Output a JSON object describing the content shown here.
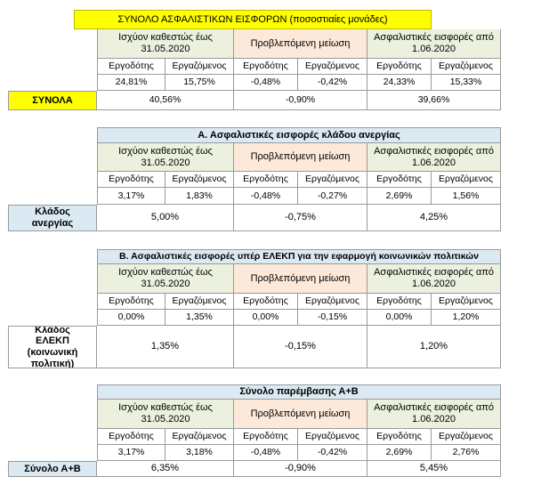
{
  "headers": {
    "current": "Ισχύον καθεστώς έως 31.05.2020",
    "reduction": "Προβλεπόμενη μείωση",
    "new": "Ασφαλιστικές εισφορές από 1.06.2020",
    "employer": "Εργοδότης",
    "employee": "Εργαζόμενος"
  },
  "total": {
    "title": "ΣΥΝΟΛΟ ΑΣΦΑΛΙΣΤΙΚΩΝ ΕΙΣΦΟΡΩΝ (ποσοστιαίες μονάδες)",
    "values": [
      "24,81%",
      "15,75%",
      "-0,48%",
      "-0,42%",
      "24,33%",
      "15,33%"
    ],
    "row_label": "ΣΥΝΟΛΑ",
    "sums": [
      "40,56%",
      "-0,90%",
      "39,66%"
    ]
  },
  "section_a": {
    "title": "Α. Ασφαλιστικές εισφορές κλάδου ανεργίας",
    "values": [
      "3,17%",
      "1,83%",
      "-0,48%",
      "-0,27%",
      "2,69%",
      "1,56%"
    ],
    "row_label": "Κλάδος ανεργίας",
    "sums": [
      "5,00%",
      "-0,75%",
      "4,25%"
    ]
  },
  "section_b": {
    "title": "Β. Ασφαλιστικές εισφορές υπέρ ΕΛΕΚΠ για την εφαρμογή κοινωνικών πολιτικών",
    "values": [
      "0,00%",
      "1,35%",
      "0,00%",
      "-0,15%",
      "0,00%",
      "1,20%"
    ],
    "row_label": "Κλάδος ΕΛΕΚΠ (κοινωνική πολιτική)",
    "sums": [
      "1,35%",
      "-0,15%",
      "1,20%"
    ]
  },
  "section_ab": {
    "title": "Σύνολο παρέμβασης Α+Β",
    "values": [
      "3,17%",
      "3,18%",
      "-0,48%",
      "-0,42%",
      "2,69%",
      "2,76%"
    ],
    "row_label": "Σύνολο Α+Β",
    "sums": [
      "6,35%",
      "-0,90%",
      "5,45%"
    ]
  },
  "colors": {
    "header_green": "#ebf1de",
    "header_red": "#fde9d9",
    "title_blue": "#dbe9f3",
    "title_yellow": "#ffff00",
    "grid": "#9a9a9a"
  }
}
